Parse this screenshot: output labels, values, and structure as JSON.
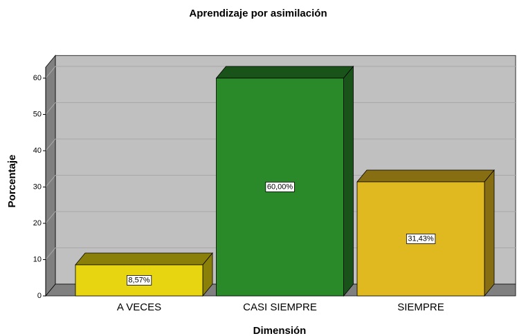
{
  "chart_data": {
    "type": "bar3d",
    "title": "Aprendizaje por asimilación",
    "x_label": "Dimensión",
    "y_label": "Porcentaje",
    "categories": [
      "A VECES",
      "CASI SIEMPRE",
      "SIEMPRE"
    ],
    "values": [
      8.57,
      60.0,
      31.43
    ],
    "value_labels": [
      "8,57%",
      "60,00%",
      "31,43%"
    ],
    "colors": [
      "#e6d510",
      "#2a8a2a",
      "#e0b820"
    ],
    "side_colors": [
      "#8a7f08",
      "#1a531a",
      "#876e13"
    ],
    "ylim": [
      0,
      63
    ],
    "yticks": [
      0,
      10,
      20,
      30,
      40,
      50,
      60
    ],
    "grid": true
  }
}
